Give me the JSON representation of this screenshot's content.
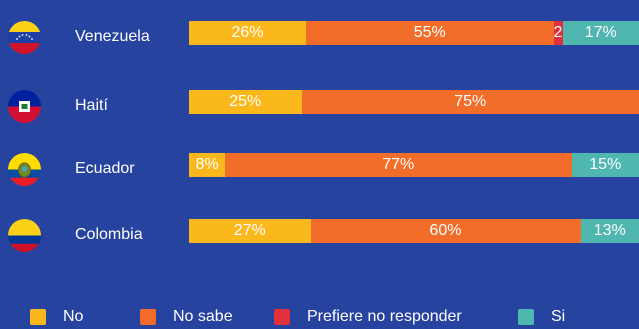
{
  "chart_data": {
    "type": "bar",
    "orientation": "horizontal",
    "stacked": true,
    "categories": [
      "Venezuela",
      "Haití",
      "Ecuador",
      "Colombia"
    ],
    "series": [
      {
        "name": "No",
        "color": "#fbb81c",
        "values": [
          26,
          25,
          8,
          27
        ],
        "labels": [
          "26%",
          "25%",
          "8%",
          "27%"
        ]
      },
      {
        "name": "No sabe",
        "color": "#f26d29",
        "values": [
          55,
          75,
          77,
          60
        ],
        "labels": [
          "55%",
          "75%",
          "77%",
          "60%"
        ]
      },
      {
        "name": "Prefiere no responder",
        "color": "#e0303c",
        "values": [
          2,
          0,
          0,
          0
        ],
        "labels": [
          "2%",
          "",
          "",
          ""
        ]
      },
      {
        "name": "Si",
        "color": "#4fb6b0",
        "values": [
          17,
          0,
          15,
          13
        ],
        "labels": [
          "17%",
          "",
          "15%",
          "13%"
        ]
      }
    ],
    "xlim": [
      0,
      100
    ],
    "grid": false,
    "legend_position": "bottom",
    "flags": [
      "venezuela-flag",
      "haiti-flag",
      "ecuador-flag",
      "colombia-flag"
    ]
  },
  "colors": {
    "background": "#2743a0",
    "text": "#ffffff"
  }
}
